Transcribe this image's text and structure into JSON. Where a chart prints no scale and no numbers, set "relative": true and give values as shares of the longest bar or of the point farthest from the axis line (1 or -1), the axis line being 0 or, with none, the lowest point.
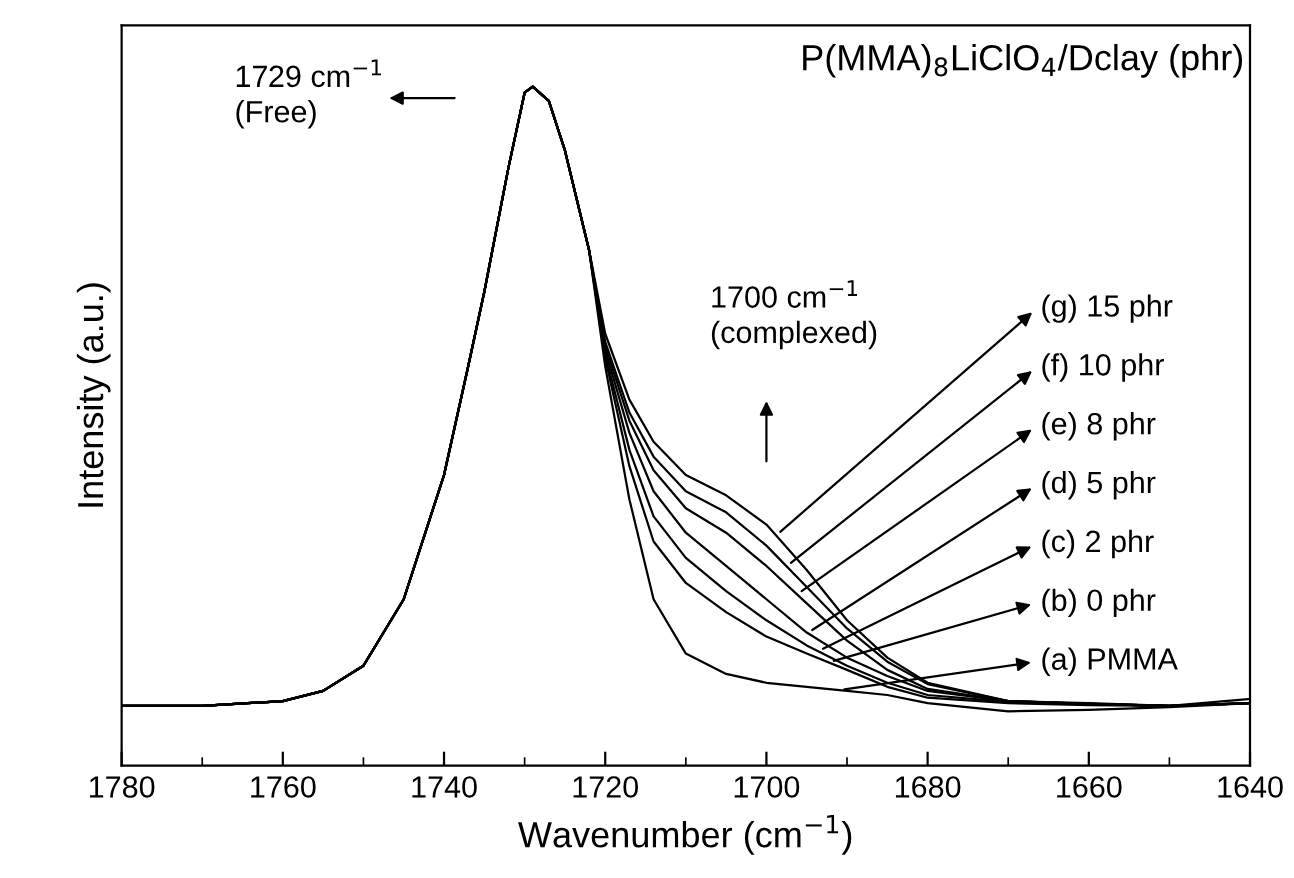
{
  "chart_data": {
    "type": "line",
    "title": "P(MMA)$_{8}$LiClO$_{4}$/Dclay (phr)",
    "xlabel": "Wavenumber (cm$^{−1}$)",
    "ylabel": "Intensity (a.u.)",
    "relative": true,
    "xlim": [
      1780,
      1640
    ],
    "xticks": [
      1780,
      1760,
      1740,
      1720,
      1700,
      1680,
      1660,
      1640
    ],
    "tick_labels": "x",
    "legend": "right",
    "grid": false,
    "marker": "none",
    "line_style": "solid",
    "x": [
      1780,
      1770,
      1760,
      1755,
      1750,
      1745,
      1740,
      1737,
      1735,
      1732,
      1730,
      1729,
      1727,
      1725,
      1722,
      1720,
      1717,
      1714,
      1710,
      1705,
      1700,
      1695,
      1690,
      1685,
      1680,
      1670,
      1660,
      1650,
      1640
    ],
    "annotations": [
      "1729 cm$^{−1}$\n(Free)",
      "1700 cm$^{−1}$\n(complexed)"
    ],
    "series": [
      {
        "name": "(a) PMMA",
        "color": "#000000",
        "values": [
          0.088,
          0.088,
          0.095,
          0.11,
          0.147,
          0.245,
          0.428,
          0.588,
          0.698,
          0.881,
          0.991,
          1.0,
          0.979,
          0.906,
          0.759,
          0.588,
          0.392,
          0.245,
          0.165,
          0.135,
          0.122,
          0.116,
          0.11,
          0.104,
          0.092,
          0.08,
          0.082,
          0.086,
          0.092
        ]
      },
      {
        "name": "(b) 0 phr",
        "color": "#000000",
        "values": [
          0.088,
          0.088,
          0.095,
          0.11,
          0.147,
          0.245,
          0.428,
          0.588,
          0.698,
          0.881,
          0.991,
          1.0,
          0.979,
          0.906,
          0.759,
          0.6,
          0.441,
          0.33,
          0.269,
          0.226,
          0.19,
          0.165,
          0.141,
          0.116,
          0.1,
          0.092,
          0.089,
          0.088,
          0.092
        ]
      },
      {
        "name": "(c) 2 phr",
        "color": "#000000",
        "values": [
          0.088,
          0.088,
          0.095,
          0.11,
          0.147,
          0.245,
          0.428,
          0.588,
          0.698,
          0.881,
          0.991,
          1.0,
          0.979,
          0.906,
          0.759,
          0.606,
          0.465,
          0.367,
          0.306,
          0.257,
          0.214,
          0.177,
          0.147,
          0.122,
          0.104,
          0.094,
          0.091,
          0.088,
          0.092
        ]
      },
      {
        "name": "(d) 5 phr",
        "color": "#000000",
        "values": [
          0.088,
          0.088,
          0.095,
          0.11,
          0.147,
          0.245,
          0.428,
          0.588,
          0.698,
          0.881,
          0.991,
          1.0,
          0.979,
          0.906,
          0.759,
          0.612,
          0.49,
          0.404,
          0.343,
          0.294,
          0.245,
          0.196,
          0.159,
          0.132,
          0.11,
          0.095,
          0.091,
          0.088,
          0.092
        ]
      },
      {
        "name": "(e) 8 phr",
        "color": "#000000",
        "values": [
          0.088,
          0.088,
          0.095,
          0.11,
          0.147,
          0.245,
          0.428,
          0.588,
          0.698,
          0.881,
          0.991,
          1.0,
          0.979,
          0.906,
          0.759,
          0.618,
          0.508,
          0.435,
          0.379,
          0.343,
          0.294,
          0.239,
          0.184,
          0.141,
          0.113,
          0.095,
          0.091,
          0.088,
          0.092
        ]
      },
      {
        "name": "(f) 10 phr",
        "color": "#000000",
        "values": [
          0.088,
          0.088,
          0.095,
          0.11,
          0.147,
          0.245,
          0.428,
          0.588,
          0.698,
          0.881,
          0.991,
          1.0,
          0.979,
          0.906,
          0.759,
          0.624,
          0.52,
          0.455,
          0.404,
          0.373,
          0.324,
          0.263,
          0.202,
          0.153,
          0.12,
          0.095,
          0.091,
          0.088,
          0.092
        ]
      },
      {
        "name": "(g) 15 phr",
        "color": "#000000",
        "values": [
          0.088,
          0.088,
          0.095,
          0.11,
          0.147,
          0.245,
          0.428,
          0.588,
          0.698,
          0.881,
          0.991,
          1.0,
          0.979,
          0.906,
          0.759,
          0.636,
          0.539,
          0.477,
          0.428,
          0.398,
          0.355,
          0.288,
          0.214,
          0.159,
          0.122,
          0.095,
          0.092,
          0.088,
          0.098
        ]
      }
    ]
  }
}
